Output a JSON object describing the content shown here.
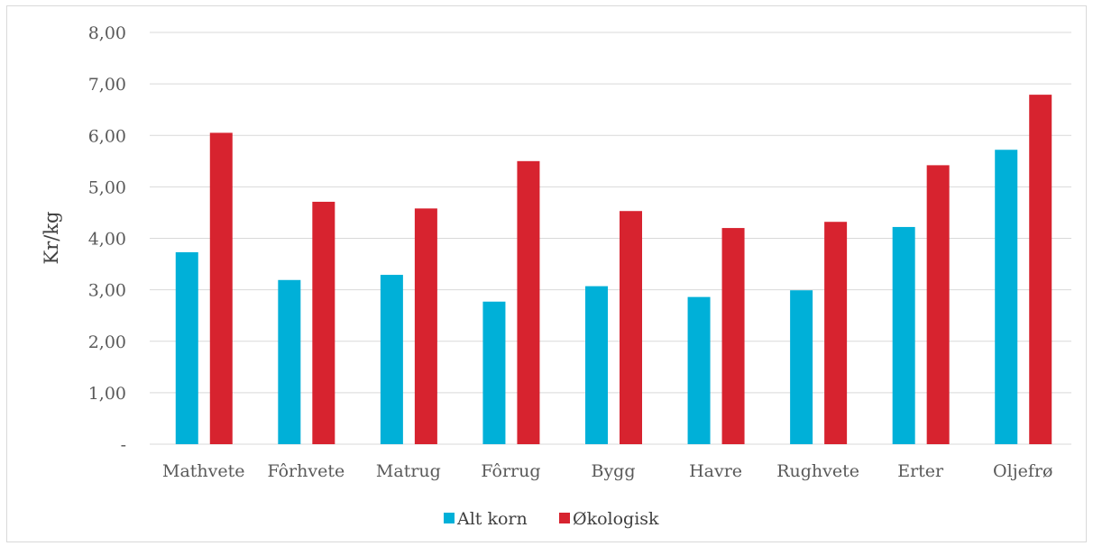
{
  "chart_data": {
    "type": "bar",
    "ylabel": "Kr/kg",
    "xlabel": "",
    "ylim": [
      0,
      8
    ],
    "y_ticks": [
      "-",
      "1,00",
      "2,00",
      "3,00",
      "4,00",
      "5,00",
      "6,00",
      "7,00",
      "8,00"
    ],
    "categories": [
      "Mathvete",
      "Fôrhvete",
      "Matrug",
      "Fôrrug",
      "Bygg",
      "Havre",
      "Rughvete",
      "Erter",
      "Oljefrø"
    ],
    "series": [
      {
        "name": "Alt korn",
        "color": "#00b0d8",
        "values": [
          3.73,
          3.19,
          3.29,
          2.77,
          3.07,
          2.86,
          2.99,
          4.22,
          5.72
        ]
      },
      {
        "name": "Økologisk",
        "color": "#d7232f",
        "values": [
          6.05,
          4.71,
          4.58,
          5.5,
          4.53,
          4.2,
          4.32,
          5.42,
          6.79
        ]
      }
    ],
    "grid": true,
    "legend": "bottom"
  }
}
